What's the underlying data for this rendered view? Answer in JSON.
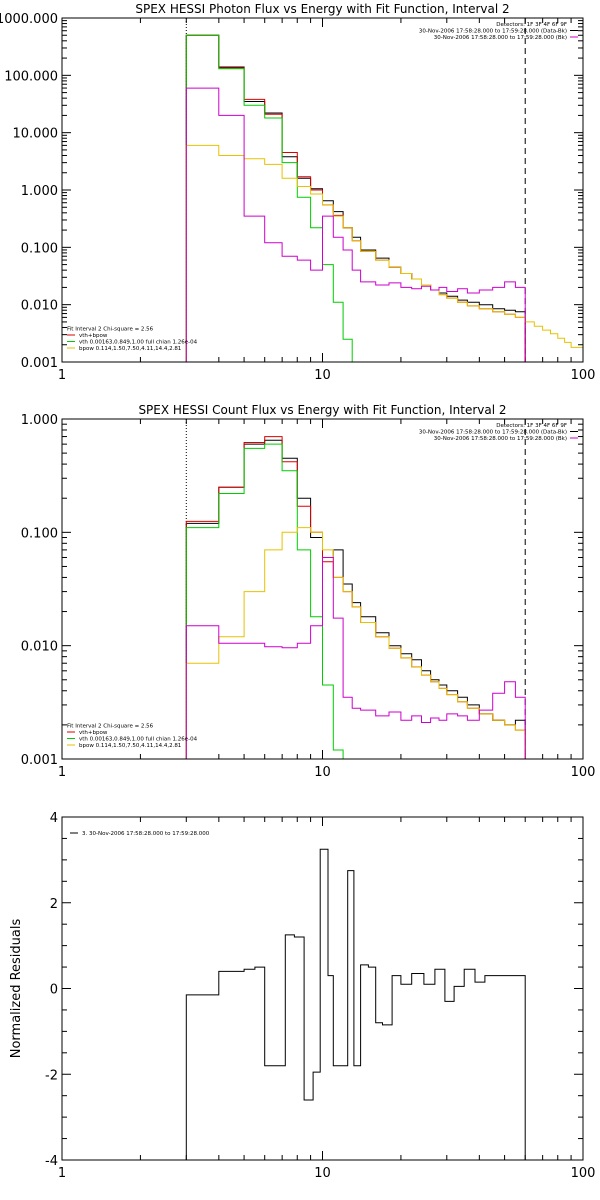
{
  "colors": {
    "data": "#000000",
    "total": "#dd0000",
    "vth": "#00cc00",
    "bpow": "#e6c200",
    "background": "#cc00cc",
    "axes": "#000000"
  },
  "chart_data": [
    {
      "type": "line",
      "title": "SPEX HESSI Photon Flux vs Energy with Fit Function, Interval 2",
      "xlabel": "",
      "ylabel": "",
      "xscale": "log",
      "yscale": "log",
      "xlim": [
        1,
        100
      ],
      "ylim": [
        0.001,
        1000
      ],
      "xticks": [
        {
          "value": 1,
          "label": "1"
        },
        {
          "value": 10,
          "label": "10"
        },
        {
          "value": 100,
          "label": "100"
        }
      ],
      "yticks": [
        {
          "value": 0.001,
          "label": "0.001"
        },
        {
          "value": 0.01,
          "label": "0.010"
        },
        {
          "value": 0.1,
          "label": "0.100"
        },
        {
          "value": 1,
          "label": "1.000"
        },
        {
          "value": 10,
          "label": "10.000"
        },
        {
          "value": 100,
          "label": "100.000"
        },
        {
          "value": 1000,
          "label": "1000.000"
        }
      ],
      "vlines": [
        {
          "x": 3,
          "style": "dotted"
        },
        {
          "x": 60,
          "style": "dashed"
        }
      ],
      "legend_top": {
        "placement": "top-right",
        "entries": [
          {
            "text": "Detectors: 1F 3F 4F 6F 9F",
            "color": ""
          },
          {
            "text": "30-Nov-2006 17:58:28.000 to 17:59:28.000 (Data-Bk)",
            "color": "#000000"
          },
          {
            "text": "30-Nov-2006 17:58:28.000 to 17:59:28.000 (Bk)",
            "color": "#cc00cc"
          }
        ]
      },
      "legend_bottom": {
        "placement": "bottom-left",
        "entries": [
          {
            "text": "Fit Interval 2   Chi-square = 2.56",
            "color": ""
          },
          {
            "text": "vth+bpow",
            "color": "#dd0000"
          },
          {
            "text": "vth 0.00163,0.849,1.00  full chian 1.26e-04",
            "color": "#00cc00"
          },
          {
            "text": "bpow 0.114,1.50,7.50,4.11,14.4,2.81",
            "color": "#e6c200"
          }
        ]
      },
      "series": [
        {
          "color": "#000000",
          "edges": [
            3,
            4,
            5,
            6,
            7,
            8,
            9,
            10,
            11,
            12,
            13,
            14,
            16,
            18,
            20,
            22,
            24,
            26,
            28,
            30,
            33,
            36,
            40,
            45,
            50,
            55,
            60
          ],
          "values": [
            500,
            140,
            35,
            22,
            3.8,
            1.6,
            1.05,
            0.65,
            0.42,
            0.22,
            0.15,
            0.09,
            0.065,
            0.045,
            0.035,
            0.028,
            0.022,
            0.018,
            0.016,
            0.014,
            0.012,
            0.011,
            0.01,
            0.0085,
            0.008,
            0.0075
          ]
        },
        {
          "color": "#dd0000",
          "edges": [
            3,
            4,
            5,
            6,
            7,
            8,
            9,
            10,
            11,
            12,
            13,
            14,
            16,
            18,
            20,
            22,
            24,
            26,
            28,
            30,
            33,
            36,
            40,
            45,
            50,
            55,
            60
          ],
          "values": [
            500,
            135,
            38,
            21,
            4.5,
            1.7,
            1.0,
            0.55,
            0.36,
            0.22,
            0.13,
            0.085,
            0.06,
            0.045,
            0.035,
            0.028,
            0.022,
            0.018,
            0.015,
            0.013,
            0.011,
            0.0095,
            0.0085,
            0.0075,
            0.0068,
            0.006
          ]
        },
        {
          "color": "#00cc00",
          "edges": [
            3,
            4,
            5,
            6,
            7,
            8,
            9,
            10,
            11,
            12,
            13,
            14
          ],
          "values": [
            500,
            130,
            30,
            18,
            3.0,
            0.75,
            0.22,
            0.05,
            0.011,
            0.0025,
            0.0008
          ]
        },
        {
          "color": "#e6c200",
          "edges": [
            3,
            4,
            5,
            6,
            7,
            8,
            9,
            10,
            11,
            12,
            13,
            14,
            16,
            18,
            20,
            22,
            24,
            26,
            28,
            30,
            33,
            36,
            40,
            45,
            50,
            55,
            60,
            65,
            70,
            75,
            80,
            85,
            90,
            100
          ],
          "values": [
            6,
            4,
            3.5,
            2.8,
            1.6,
            1.15,
            0.85,
            0.55,
            0.35,
            0.22,
            0.13,
            0.085,
            0.06,
            0.045,
            0.035,
            0.028,
            0.022,
            0.018,
            0.015,
            0.013,
            0.011,
            0.0095,
            0.0085,
            0.0075,
            0.0068,
            0.006,
            0.005,
            0.0042,
            0.0036,
            0.0031,
            0.0026,
            0.0022,
            0.0018
          ]
        },
        {
          "color": "#cc00cc",
          "edges": [
            3,
            4,
            5,
            6,
            7,
            8,
            9,
            10,
            11,
            12,
            13,
            14,
            16,
            18,
            20,
            22,
            24,
            26,
            28,
            30,
            33,
            36,
            40,
            45,
            50,
            55,
            60
          ],
          "values": [
            60,
            20,
            0.35,
            0.12,
            0.07,
            0.06,
            0.04,
            0.35,
            0.15,
            0.09,
            0.04,
            0.025,
            0.022,
            0.024,
            0.02,
            0.019,
            0.021,
            0.018,
            0.02,
            0.017,
            0.019,
            0.016,
            0.018,
            0.02,
            0.025,
            0.02
          ]
        }
      ]
    },
    {
      "type": "line",
      "title": "SPEX HESSI Count Flux vs Energy with Fit Function, Interval 2",
      "xlabel": "",
      "ylabel": "",
      "xscale": "log",
      "yscale": "log",
      "xlim": [
        1,
        100
      ],
      "ylim": [
        0.001,
        1
      ],
      "xticks": [
        {
          "value": 1,
          "label": "1"
        },
        {
          "value": 10,
          "label": "10"
        },
        {
          "value": 100,
          "label": "100"
        }
      ],
      "yticks": [
        {
          "value": 0.001,
          "label": "0.001"
        },
        {
          "value": 0.01,
          "label": "0.010"
        },
        {
          "value": 0.1,
          "label": "0.100"
        },
        {
          "value": 1,
          "label": "1.000"
        }
      ],
      "vlines": [
        {
          "x": 3,
          "style": "dotted"
        },
        {
          "x": 60,
          "style": "dashed"
        }
      ],
      "legend_top": {
        "placement": "top-right",
        "entries": [
          {
            "text": "Detectors: 1F 3F 4F 6F 9F",
            "color": ""
          },
          {
            "text": "30-Nov-2006 17:58:28.000 to 17:59:28.000 (Data-Bk)",
            "color": "#000000"
          },
          {
            "text": "30-Nov-2006 17:58:28.000 to 17:59:28.000 (Bk)",
            "color": "#cc00cc"
          }
        ]
      },
      "legend_bottom": {
        "placement": "bottom-left",
        "entries": [
          {
            "text": "Fit Interval 2   Chi-square = 2.56",
            "color": ""
          },
          {
            "text": "vth+bpow",
            "color": "#dd0000"
          },
          {
            "text": "vth 0.00163,0.849,1.00  full chian 1.26e-04",
            "color": "#00cc00"
          },
          {
            "text": "bpow 0.114,1.50,7.50,4.11,14.4,2.81",
            "color": "#e6c200"
          }
        ]
      },
      "series": [
        {
          "color": "#000000",
          "edges": [
            3,
            4,
            5,
            6,
            7,
            8,
            9,
            10,
            11,
            12,
            13,
            14,
            16,
            18,
            20,
            22,
            24,
            26,
            28,
            30,
            33,
            36,
            40,
            45,
            50,
            55,
            60
          ],
          "values": [
            0.12,
            0.25,
            0.6,
            0.65,
            0.45,
            0.2,
            0.09,
            0.06,
            0.07,
            0.035,
            0.024,
            0.018,
            0.013,
            0.01,
            0.0085,
            0.0075,
            0.006,
            0.005,
            0.0045,
            0.004,
            0.0035,
            0.003,
            0.0025,
            0.0022,
            0.002,
            0.0022
          ]
        },
        {
          "color": "#dd0000",
          "edges": [
            3,
            4,
            5,
            6,
            7,
            8,
            9,
            10,
            11,
            12,
            13,
            14,
            16,
            18,
            20,
            22,
            24,
            26,
            28,
            30,
            33,
            36,
            40,
            45,
            50,
            55,
            60
          ],
          "values": [
            0.125,
            0.25,
            0.62,
            0.7,
            0.42,
            0.17,
            0.1,
            0.055,
            0.04,
            0.03,
            0.022,
            0.016,
            0.012,
            0.0095,
            0.0078,
            0.0065,
            0.0055,
            0.0048,
            0.0042,
            0.0037,
            0.0032,
            0.0028,
            0.0025,
            0.0022,
            0.002,
            0.0018
          ]
        },
        {
          "color": "#00cc00",
          "edges": [
            3,
            4,
            5,
            6,
            7,
            8,
            9,
            10,
            11,
            12
          ],
          "values": [
            0.11,
            0.22,
            0.55,
            0.6,
            0.35,
            0.07,
            0.018,
            0.0045,
            0.0012
          ]
        },
        {
          "color": "#e6c200",
          "edges": [
            3,
            4,
            5,
            6,
            7,
            8,
            9,
            10,
            11,
            12,
            13,
            14,
            16,
            18,
            20,
            22,
            24,
            26,
            28,
            30,
            33,
            36,
            40,
            45,
            50,
            55,
            60
          ],
          "values": [
            0.007,
            0.012,
            0.03,
            0.07,
            0.1,
            0.11,
            0.1,
            0.07,
            0.04,
            0.03,
            0.022,
            0.016,
            0.012,
            0.0095,
            0.0078,
            0.0065,
            0.0055,
            0.0048,
            0.0042,
            0.0037,
            0.0032,
            0.0028,
            0.0025,
            0.0022,
            0.002,
            0.0018
          ]
        },
        {
          "color": "#cc00cc",
          "edges": [
            3,
            4,
            5,
            6,
            7,
            8,
            9,
            10,
            11,
            12,
            13,
            14,
            16,
            18,
            20,
            22,
            24,
            26,
            28,
            30,
            33,
            36,
            40,
            45,
            50,
            55,
            60
          ],
          "values": [
            0.015,
            0.0105,
            0.0105,
            0.0098,
            0.0096,
            0.0105,
            0.015,
            0.06,
            0.0175,
            0.0035,
            0.0028,
            0.0027,
            0.0024,
            0.0026,
            0.0022,
            0.0024,
            0.0021,
            0.0023,
            0.0022,
            0.0025,
            0.0024,
            0.0022,
            0.0027,
            0.0038,
            0.0048,
            0.0035
          ]
        }
      ]
    },
    {
      "type": "line",
      "title": "",
      "xlabel": "",
      "ylabel": "Normalized Residuals",
      "xscale": "log",
      "yscale": "linear",
      "xlim": [
        1,
        100
      ],
      "ylim": [
        -4,
        4
      ],
      "xticks": [
        {
          "value": 1,
          "label": "1"
        },
        {
          "value": 10,
          "label": "10"
        },
        {
          "value": 100,
          "label": "100"
        }
      ],
      "yticks": [
        {
          "value": -4,
          "label": "-4"
        },
        {
          "value": -2,
          "label": "-2"
        },
        {
          "value": 0,
          "label": "0"
        },
        {
          "value": 2,
          "label": "2"
        },
        {
          "value": 4,
          "label": "4"
        }
      ],
      "vlines": [],
      "legend_top": {
        "placement": "top-left",
        "entries": [
          {
            "text": "3. 30-Nov-2006 17:58:28.000 to 17:59:28.000",
            "color": "#000000"
          }
        ]
      },
      "legend_bottom": {
        "placement": "",
        "entries": []
      },
      "series": [
        {
          "color": "#000000",
          "edges": [
            3,
            3.5,
            4,
            4.5,
            5,
            5.5,
            6,
            6.6,
            7.2,
            7.8,
            8.5,
            9.2,
            9.8,
            10.5,
            11,
            11.8,
            12.5,
            13.2,
            14,
            15,
            16,
            17,
            18.5,
            20,
            22,
            24.5,
            27,
            29.5,
            32,
            35,
            38.5,
            42,
            46,
            50,
            55,
            60
          ],
          "values": [
            -0.15,
            -0.15,
            0.4,
            0.4,
            0.45,
            0.5,
            -1.8,
            -1.8,
            1.25,
            1.2,
            -2.6,
            -1.95,
            3.25,
            0.3,
            -1.8,
            -1.8,
            2.75,
            -1.8,
            0.55,
            0.5,
            -0.8,
            -0.85,
            0.3,
            0.1,
            0.35,
            0.1,
            0.45,
            -0.3,
            0.05,
            0.45,
            0.15,
            0.3,
            0.3,
            0.3,
            0.3
          ]
        }
      ]
    }
  ]
}
